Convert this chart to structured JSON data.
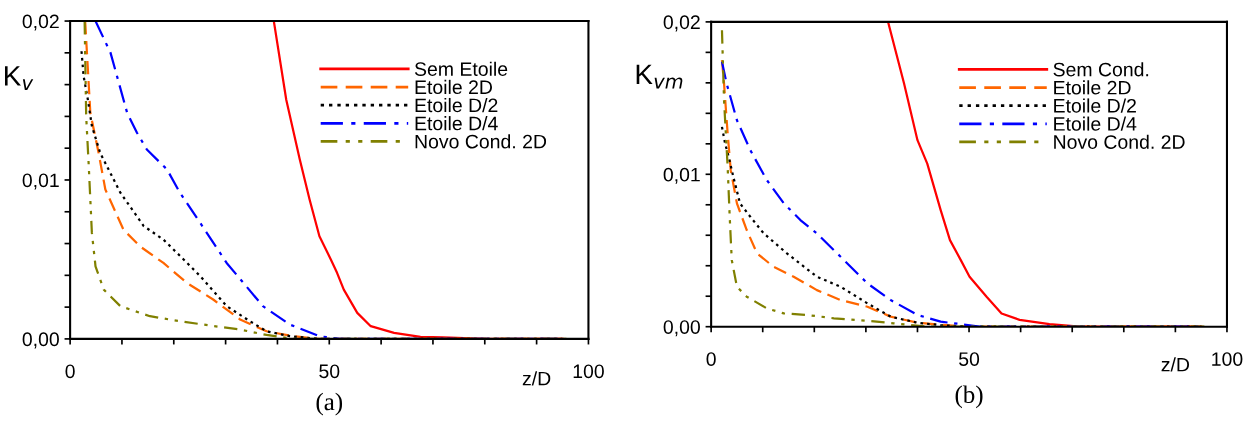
{
  "chart_data": [
    {
      "type": "line",
      "title": "(a)",
      "xlabel": "z/D",
      "ylabel": "K$_{v}$",
      "xlim": [
        0,
        100
      ],
      "ylim": [
        0,
        0.02
      ],
      "xticks": [
        0,
        {
          "value": 10,
          "label": null
        },
        {
          "value": 20,
          "label": null
        },
        {
          "value": 30,
          "label": null
        },
        {
          "value": 40,
          "label": null
        },
        50,
        {
          "value": 60,
          "label": null
        },
        {
          "value": 70,
          "label": null
        },
        {
          "value": 80,
          "label": null
        },
        {
          "value": 90,
          "label": null
        },
        100
      ],
      "yticks": [
        {
          "value": 0,
          "label": "0,00"
        },
        {
          "value": 0.002,
          "label": null
        },
        {
          "value": 0.004,
          "label": null
        },
        {
          "value": 0.006,
          "label": null
        },
        {
          "value": 0.008,
          "label": null
        },
        {
          "value": 0.01,
          "label": "0,01"
        },
        {
          "value": 0.012,
          "label": null
        },
        {
          "value": 0.014,
          "label": null
        },
        {
          "value": 0.016,
          "label": null
        },
        {
          "value": 0.018,
          "label": null
        },
        {
          "value": 0.02,
          "label": "0,02"
        }
      ],
      "grid": false,
      "legend": "top right",
      "marker": "none",
      "series": [
        {
          "name": "Sem Etoile",
          "color": "#ff0000",
          "line_style": "solid",
          "x": [
            39.3,
            41.7,
            44.3,
            46.2,
            48.1,
            50.3,
            51.5,
            52.8,
            55.4,
            58.0,
            62.5,
            67.6,
            72,
            80,
            95
          ],
          "values": [
            0.02,
            0.01505,
            0.0113,
            0.00877,
            0.00646,
            0.005,
            0.00416,
            0.0031,
            0.00164,
            0.0008,
            0.00038,
            0.00013,
            0.0001,
            0,
            0
          ]
        },
        {
          "name": "Etoile 2D",
          "color": "#ff6600",
          "line_style": "dashed",
          "x": [
            2.9,
            3.9,
            5.5,
            6.8,
            10.3,
            13.5,
            18.0,
            22.5,
            27.6,
            32.8,
            37.9,
            43.0,
            48.1,
            60,
            95
          ],
          "values": [
            0.02,
            0.01423,
            0.0117,
            0.0094,
            0.00687,
            0.00582,
            0.00478,
            0.00353,
            0.00248,
            0.00122,
            0.00048,
            0.00017,
            0,
            0,
            0
          ]
        },
        {
          "name": "Etoile D/2",
          "color": "#000000",
          "line_style": "dotted",
          "x": [
            2.2,
            2.6,
            3.4,
            4.2,
            5.8,
            9.7,
            14.2,
            18.0,
            21.9,
            25.1,
            30.2,
            34.7,
            37.9,
            42.4,
            48.1,
            95
          ],
          "values": [
            0.0181,
            0.01654,
            0.0151,
            0.0134,
            0.0117,
            0.0092,
            0.0071,
            0.00625,
            0.005,
            0.00395,
            0.00206,
            0.00111,
            0.00048,
            0.00017,
            0,
            0
          ]
        },
        {
          "name": "Etoile D/4",
          "color": "#0000ff",
          "line_style": "dashdot",
          "x": [
            4.9,
            7.8,
            11.0,
            12.9,
            14.8,
            18.7,
            21.2,
            25.1,
            30.2,
            37.2,
            42.4,
            48.1,
            52,
            95
          ],
          "values": [
            0.02,
            0.018,
            0.01423,
            0.01297,
            0.01192,
            0.01066,
            0.00919,
            0.0073,
            0.00478,
            0.00206,
            0.0009,
            0.00017,
            0,
            0
          ]
        },
        {
          "name": "Novo Cond. 2D",
          "color": "#808000",
          "line_style": "dashdotdot",
          "x": [
            2.8,
            3.1,
            3.6,
            4.2,
            4.9,
            6.5,
            9.7,
            15.4,
            19.9,
            27.0,
            32.8,
            37.9,
            43.0,
            48,
            96
          ],
          "values": [
            0.02,
            0.014,
            0.01087,
            0.00667,
            0.00457,
            0.0031,
            0.00206,
            0.00143,
            0.00118,
            0.00084,
            0.00059,
            0.00025,
            0,
            0,
            0
          ]
        }
      ]
    },
    {
      "type": "line",
      "title": "(b)",
      "xlabel": "z/D",
      "ylabel": "K$_{vm}$",
      "xlim": [
        0,
        100
      ],
      "ylim": [
        0,
        0.02
      ],
      "xticks": [
        0,
        {
          "value": 10,
          "label": null
        },
        {
          "value": 20,
          "label": null
        },
        {
          "value": 30,
          "label": null
        },
        {
          "value": 40,
          "label": null
        },
        50,
        {
          "value": 60,
          "label": null
        },
        {
          "value": 70,
          "label": null
        },
        {
          "value": 80,
          "label": null
        },
        {
          "value": 90,
          "label": null
        },
        100
      ],
      "yticks": [
        {
          "value": 0,
          "label": "0,00"
        },
        {
          "value": 0.002,
          "label": null
        },
        {
          "value": 0.004,
          "label": null
        },
        {
          "value": 0.006,
          "label": null
        },
        {
          "value": 0.008,
          "label": null
        },
        {
          "value": 0.01,
          "label": "0,01"
        },
        {
          "value": 0.012,
          "label": null
        },
        {
          "value": 0.014,
          "label": null
        },
        {
          "value": 0.016,
          "label": null
        },
        {
          "value": 0.018,
          "label": null
        },
        {
          "value": 0.02,
          "label": "0,02"
        }
      ],
      "grid": false,
      "legend": "top right",
      "marker": "none",
      "series": [
        {
          "name": "Sem Cond.",
          "color": "#ff0000",
          "line_style": "solid",
          "x": [
            34.3,
            37.4,
            40.0,
            41.9,
            44.5,
            46.3,
            48.4,
            50.1,
            53.4,
            56.3,
            59.8,
            65.6,
            71.4,
            95
          ],
          "values": [
            0.02,
            0.01596,
            0.01224,
            0.0107,
            0.00765,
            0.00568,
            0.00437,
            0.00328,
            0.00197,
            0.00087,
            0.00045,
            0.00017,
            0,
            0
          ]
        },
        {
          "name": "Etoile 2D",
          "color": "#ff6600",
          "line_style": "dashed",
          "x": [
            2.1,
            2.5,
            3.2,
            3.8,
            5.0,
            6.9,
            8.9,
            12.1,
            16.0,
            20.5,
            25.1,
            30.3,
            34.8,
            40.0,
            44.5,
            50,
            95
          ],
          "values": [
            0.01749,
            0.01596,
            0.01268,
            0.01027,
            0.00809,
            0.00634,
            0.00481,
            0.00393,
            0.00328,
            0.0024,
            0.00175,
            0.00131,
            0.00066,
            0.00026,
            0.00013,
            0,
            0
          ]
        },
        {
          "name": "Etoile D/2",
          "color": "#000000",
          "line_style": "dotted",
          "x": [
            2.1,
            2.7,
            3.4,
            4.3,
            5.6,
            7.6,
            10.2,
            14.7,
            20.5,
            25.1,
            30.3,
            34.8,
            40.0,
            44.5,
            50,
            95
          ],
          "values": [
            0.01311,
            0.01202,
            0.01115,
            0.00984,
            0.00809,
            0.00721,
            0.00612,
            0.00481,
            0.00328,
            0.00262,
            0.00153,
            0.00066,
            0.00026,
            0.0001,
            0,
            0
          ]
        },
        {
          "name": "Etoile D/4",
          "color": "#0000ff",
          "line_style": "dashdot",
          "x": [
            2.1,
            3.0,
            5.0,
            7.6,
            10.8,
            14.1,
            17.3,
            20.5,
            25.1,
            30.3,
            34.8,
            40.0,
            44.5,
            48.4,
            52,
            95
          ],
          "values": [
            0.01738,
            0.01596,
            0.01355,
            0.01158,
            0.00962,
            0.00809,
            0.007,
            0.00612,
            0.00459,
            0.00284,
            0.00175,
            0.00077,
            0.00033,
            0.00017,
            0,
            0
          ]
        },
        {
          "name": "Novo Cond. 2D",
          "color": "#808000",
          "line_style": "dashdotdot",
          "x": [
            2.1,
            2.5,
            3.2,
            3.6,
            4.0,
            5.0,
            6.9,
            10.8,
            14.1,
            18.6,
            23.8,
            30.3,
            35.4,
            41.9,
            46,
            96
          ],
          "values": [
            0.01945,
            0.01486,
            0.01049,
            0.00721,
            0.00437,
            0.00262,
            0.00197,
            0.0012,
            0.00087,
            0.00077,
            0.00055,
            0.00039,
            0.00022,
            0,
            0,
            0
          ]
        }
      ]
    }
  ]
}
